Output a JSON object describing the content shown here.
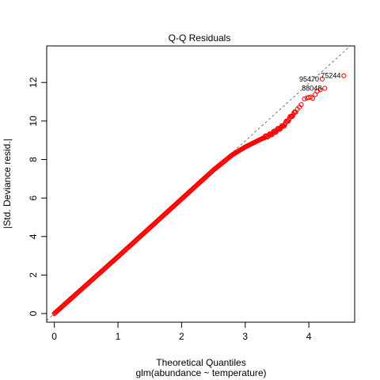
{
  "chart_data": {
    "type": "scatter",
    "title": "Q-Q Residuals",
    "xlabel": "Theoretical Quantiles",
    "ylabel": "|Std. Deviance resid.|",
    "subtitle": "glm(abundance ~ temperature)",
    "xlim": [
      -0.12,
      4.72
    ],
    "ylim": [
      -0.45,
      13.9
    ],
    "x_ticks": [
      0,
      1,
      2,
      3,
      4
    ],
    "y_ticks": [
      0,
      2,
      4,
      6,
      8,
      10,
      12
    ],
    "grid": false,
    "point_color": "#ff0000",
    "reference_line": {
      "style": "dashed",
      "color": "#555555",
      "slope": 2.988,
      "intercept": 0
    },
    "curve_knots": [
      [
        0.0,
        0.0
      ],
      [
        1.0,
        2.95
      ],
      [
        2.0,
        5.95
      ],
      [
        2.5,
        7.45
      ],
      [
        2.8,
        8.25
      ],
      [
        3.0,
        8.65
      ],
      [
        3.2,
        8.98
      ],
      [
        3.4,
        9.3
      ],
      [
        3.6,
        9.75
      ],
      [
        3.7,
        10.15
      ],
      [
        3.8,
        10.5
      ]
    ],
    "tail_points": [
      [
        3.82,
        10.62
      ],
      [
        3.85,
        10.72
      ],
      [
        3.88,
        10.85
      ],
      [
        3.93,
        11.15
      ],
      [
        3.97,
        11.2
      ],
      [
        4.0,
        11.22
      ],
      [
        4.03,
        11.25
      ],
      [
        4.06,
        11.18
      ],
      [
        4.1,
        11.38
      ],
      [
        4.13,
        11.55
      ],
      [
        4.18,
        11.62
      ],
      [
        4.25,
        11.7
      ],
      [
        4.21,
        12.18
      ],
      [
        4.55,
        12.35
      ]
    ],
    "labeled_points": [
      {
        "label": "75244",
        "x": 4.55,
        "y": 12.35
      },
      {
        "label": "95470",
        "x": 4.21,
        "y": 12.18
      },
      {
        "label": "88048",
        "x": 4.25,
        "y": 11.7
      }
    ]
  }
}
